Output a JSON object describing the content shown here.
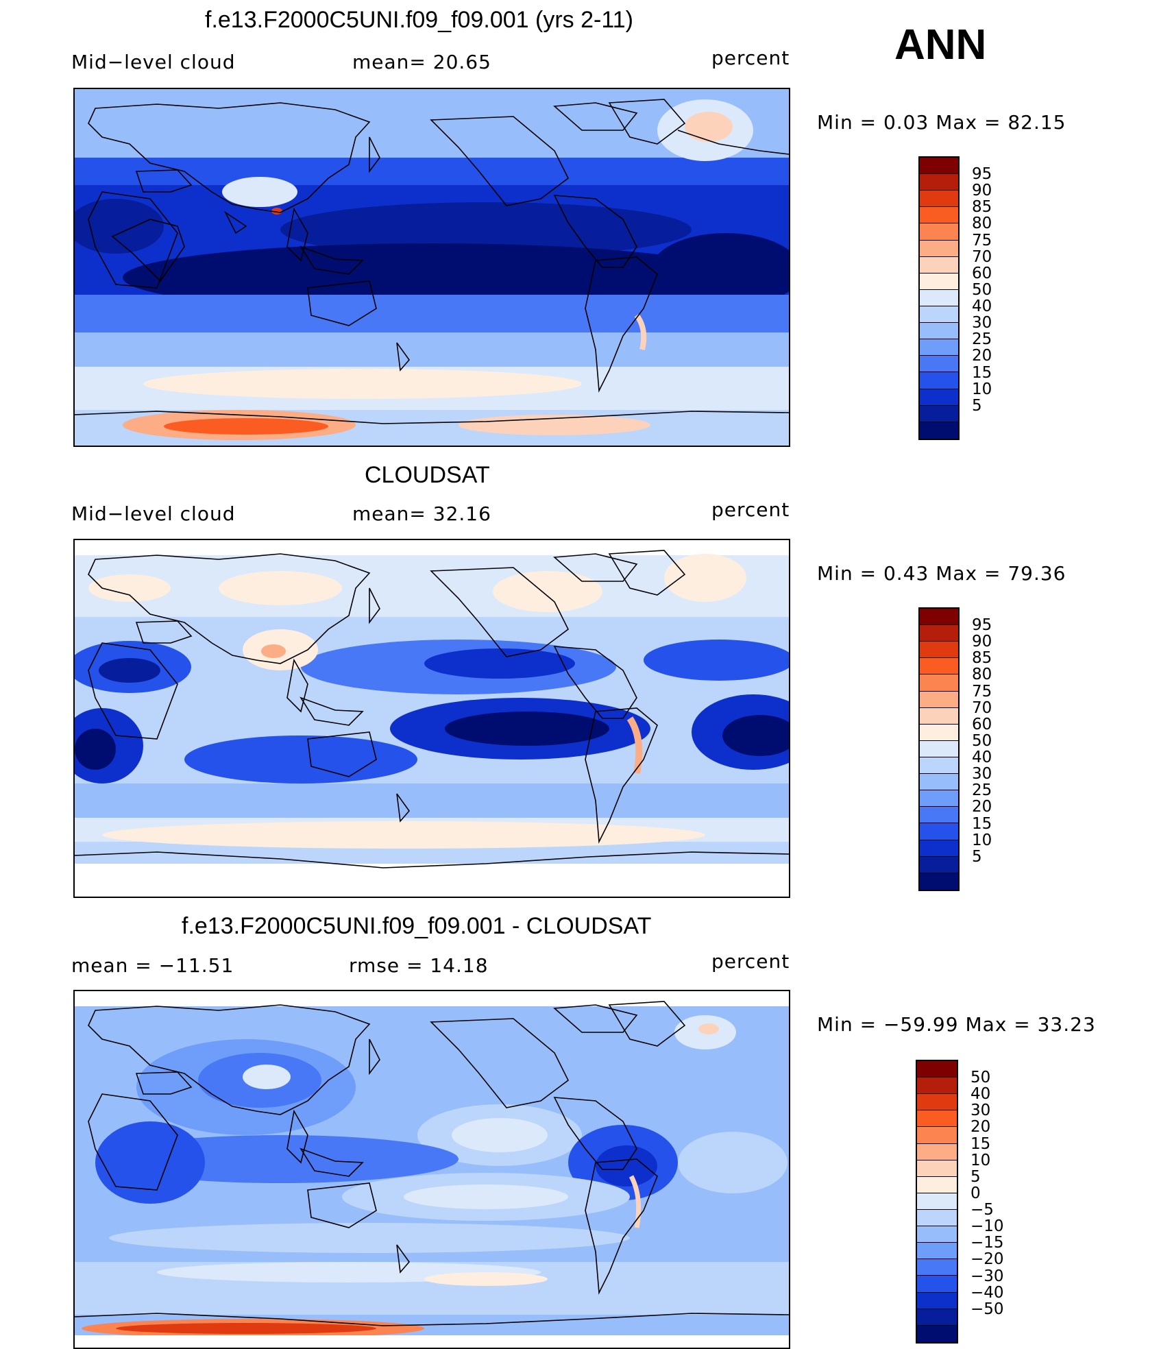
{
  "season": "ANN",
  "legend_colors": {
    "warm": [
      "#7f0000",
      "#b51e0a",
      "#e03a10",
      "#fa5c22",
      "#fc8450",
      "#fcad86",
      "#fdd2bb",
      "#fdeee0"
    ],
    "cool": [
      "#dce9fb",
      "#bcd5fb",
      "#98bdfb",
      "#6e9efa",
      "#4878f5",
      "#2552eb",
      "#0d30cc",
      "#061d9c",
      "#000d70"
    ]
  },
  "panels": [
    {
      "title": "f.e13.F2000C5UNI.f09_f09.001 (yrs 2-11)",
      "left_label": "Mid−level  cloud",
      "center_label": "mean=   20.65",
      "units": "percent",
      "minmax": "Min  =      0.03  Max  =     82.15",
      "colorbar_labels": [
        "95",
        "90",
        "85",
        "80",
        "75",
        "70",
        "60",
        "50",
        "40",
        "30",
        "25",
        "20",
        "15",
        "10",
        "5"
      ]
    },
    {
      "title": "CLOUDSAT",
      "left_label": "Mid−level  cloud",
      "center_label": "mean=   32.16",
      "units": "percent",
      "minmax": "Min  =      0.43  Max  =     79.36",
      "colorbar_labels": [
        "95",
        "90",
        "85",
        "80",
        "75",
        "70",
        "60",
        "50",
        "40",
        "30",
        "25",
        "20",
        "15",
        "10",
        "5"
      ]
    },
    {
      "title": "f.e13.F2000C5UNI.f09_f09.001 - CLOUDSAT",
      "left_label": "mean  =  −11.51",
      "center_label": "rmse  =    14.18",
      "units": "percent",
      "minmax": "Min  =  −59.99  Max  =    33.23",
      "colorbar_labels": [
        "50",
        "40",
        "30",
        "20",
        "15",
        "10",
        "5",
        "0",
        "−5",
        "−10",
        "−15",
        "−20",
        "−30",
        "−40",
        "−50"
      ]
    }
  ]
}
